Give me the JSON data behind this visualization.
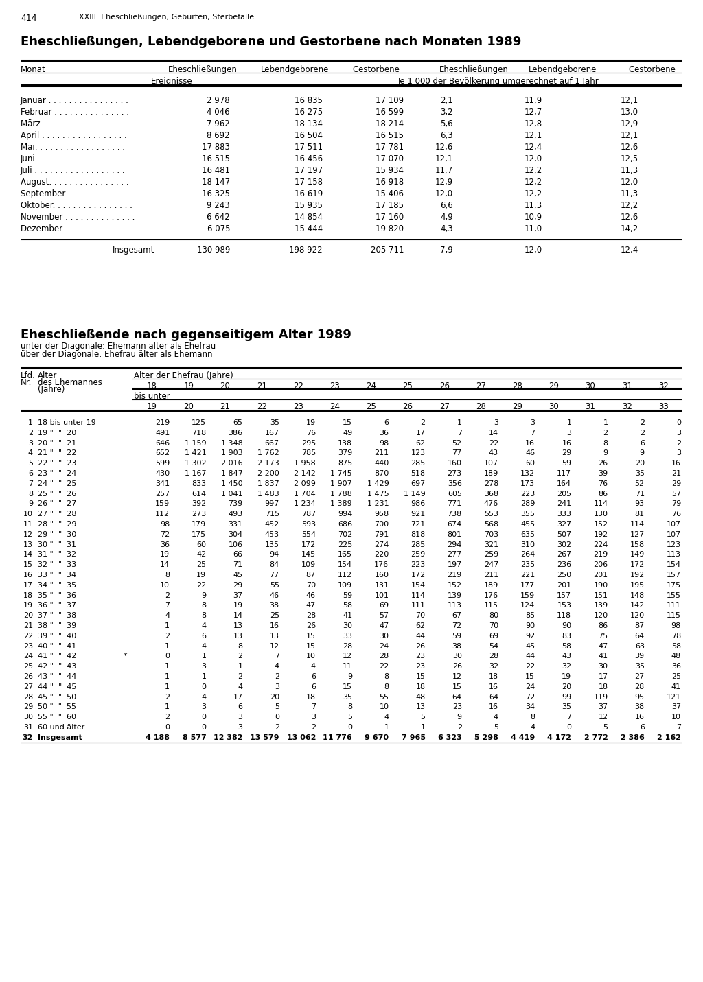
{
  "page_number": "414",
  "page_header": "XXIII. Eheschließungen, Geburten, Sterbefälle",
  "table1_title": "Eheschließungen, Lebendgeborene und Gestorbene nach Monaten 1989",
  "table1_sub1": "Ereignisse",
  "table1_sub2": "Je 1 000 der Bevölkerung umgerechnet auf 1 Jahr",
  "table1_rows": [
    [
      "Januar . . . . . . . . . . . . . . . .",
      "2 978",
      "16 835",
      "17 109",
      "2,1",
      "11,9",
      "12,1"
    ],
    [
      "Februar . . . . . . . . . . . . . . .",
      "4 046",
      "16 275",
      "16 599",
      "3,2",
      "12,7",
      "13,0"
    ],
    [
      "März. . . . . . . . . . . . . . . . .",
      "7 962",
      "18 134",
      "18 214",
      "5,6",
      "12,8",
      "12,9"
    ],
    [
      "April . . . . . . . . . . . . . . . . .",
      "8 692",
      "16 504",
      "16 515",
      "6,3",
      "12,1",
      "12,1"
    ],
    [
      "Mai. . . . . . . . . . . . . . . . . .",
      "17 883",
      "17 511",
      "17 781",
      "12,6",
      "12,4",
      "12,6"
    ],
    [
      "Juni. . . . . . . . . . . . . . . . . .",
      "16 515",
      "16 456",
      "17 070",
      "12,1",
      "12,0",
      "12,5"
    ],
    [
      "Juli . . . . . . . . . . . . . . . . . .",
      "16 481",
      "17 197",
      "15 934",
      "11,7",
      "12,2",
      "11,3"
    ],
    [
      "August. . . . . . . . . . . . . . . .",
      "18 147",
      "17 158",
      "16 918",
      "12,9",
      "12,2",
      "12,0"
    ],
    [
      "September . . . . . . . . . . . . .",
      "16 325",
      "16 619",
      "15 406",
      "12,0",
      "12,2",
      "11,3"
    ],
    [
      "Oktober. . . . . . . . . . . . . . . .",
      "9 243",
      "15 935",
      "17 185",
      "6,6",
      "11,3",
      "12,2"
    ],
    [
      "November . . . . . . . . . . . . . .",
      "6 642",
      "14 854",
      "17 160",
      "4,9",
      "10,9",
      "12,6"
    ],
    [
      "Dezember . . . . . . . . . . . . . .",
      "6 075",
      "15 444",
      "19 820",
      "4,3",
      "11,0",
      "14,2"
    ]
  ],
  "table1_total_label": "Insgesamt",
  "table1_total": [
    "130 989",
    "198 922",
    "205 711",
    "7,9",
    "12,0",
    "12,4"
  ],
  "table2_title": "Eheschließende nach gegenseitigem Alter 1989",
  "table2_sub1": "unter der Diagonale: Ehemann älter als Ehefrau",
  "table2_sub2": "über der Diagonale: Ehefrau älter als Ehemann",
  "table2_age_from": [
    "18",
    "19",
    "20",
    "21",
    "22",
    "23",
    "24",
    "25",
    "26",
    "27",
    "28",
    "29",
    "30",
    "31",
    "32"
  ],
  "table2_age_to": [
    "19",
    "20",
    "21",
    "22",
    "23",
    "24",
    "25",
    "26",
    "27",
    "28",
    "29",
    "30",
    "31",
    "32",
    "33"
  ],
  "table2_rows": [
    [
      "1",
      "18 bis unter 19",
      "219",
      "125",
      "65",
      "35",
      "19",
      "15",
      "6",
      "2",
      "1",
      "3",
      "3",
      "1",
      "1",
      "2",
      "0"
    ],
    [
      "2",
      "19 \"  \"  20",
      "491",
      "718",
      "386",
      "167",
      "76",
      "49",
      "36",
      "17",
      "7",
      "14",
      "7",
      "3",
      "2",
      "2",
      "3"
    ],
    [
      "3",
      "20 \"  \"  21",
      "646",
      "1 159",
      "1 348",
      "667",
      "295",
      "138",
      "98",
      "62",
      "52",
      "22",
      "16",
      "16",
      "8",
      "6",
      "2"
    ],
    [
      "4",
      "21 \"  \"  22",
      "652",
      "1 421",
      "1 903",
      "1 762",
      "785",
      "379",
      "211",
      "123",
      "77",
      "43",
      "46",
      "29",
      "9",
      "9",
      "3"
    ],
    [
      "5",
      "22 \"  \"  23",
      "599",
      "1 302",
      "2 016",
      "2 173",
      "1 958",
      "875",
      "440",
      "285",
      "160",
      "107",
      "60",
      "59",
      "26",
      "20",
      "16"
    ],
    [
      "6",
      "23 \"  \"  24",
      "430",
      "1 167",
      "1 847",
      "2 200",
      "2 142",
      "1 745",
      "870",
      "518",
      "273",
      "189",
      "132",
      "117",
      "39",
      "35",
      "21"
    ],
    [
      "7",
      "24 \"  \"  25",
      "341",
      "833",
      "1 450",
      "1 837",
      "2 099",
      "1 907",
      "1 429",
      "697",
      "356",
      "278",
      "173",
      "164",
      "76",
      "52",
      "29"
    ],
    [
      "8",
      "25 \"  \"  26",
      "257",
      "614",
      "1 041",
      "1 483",
      "1 704",
      "1 788",
      "1 475",
      "1 149",
      "605",
      "368",
      "223",
      "205",
      "86",
      "71",
      "57"
    ],
    [
      "9",
      "26 \"  \"  27",
      "159",
      "392",
      "739",
      "997",
      "1 234",
      "1 389",
      "1 231",
      "986",
      "771",
      "476",
      "289",
      "241",
      "114",
      "93",
      "79"
    ],
    [
      "10",
      "27 \"  \"  28",
      "112",
      "273",
      "493",
      "715",
      "787",
      "994",
      "958",
      "921",
      "738",
      "553",
      "355",
      "333",
      "130",
      "81",
      "76"
    ],
    [
      "11",
      "28 \"  \"  29",
      "98",
      "179",
      "331",
      "452",
      "593",
      "686",
      "700",
      "721",
      "674",
      "568",
      "455",
      "327",
      "152",
      "114",
      "107"
    ],
    [
      "12",
      "29 \"  \"  30",
      "72",
      "175",
      "304",
      "453",
      "554",
      "702",
      "791",
      "818",
      "801",
      "703",
      "635",
      "507",
      "192",
      "127",
      "107"
    ],
    [
      "13",
      "30 \"  \"  31",
      "36",
      "60",
      "106",
      "135",
      "172",
      "225",
      "274",
      "285",
      "294",
      "321",
      "310",
      "302",
      "224",
      "158",
      "123"
    ],
    [
      "14",
      "31 \"  \"  32",
      "19",
      "42",
      "66",
      "94",
      "145",
      "165",
      "220",
      "259",
      "277",
      "259",
      "264",
      "267",
      "219",
      "149",
      "113"
    ],
    [
      "15",
      "32 \"  \"  33",
      "14",
      "25",
      "71",
      "84",
      "109",
      "154",
      "176",
      "223",
      "197",
      "247",
      "235",
      "236",
      "206",
      "172",
      "154"
    ],
    [
      "16",
      "33 \"  \"  34",
      "8",
      "19",
      "45",
      "77",
      "87",
      "112",
      "160",
      "172",
      "219",
      "211",
      "221",
      "250",
      "201",
      "192",
      "157"
    ],
    [
      "17",
      "34 \"  \"  35",
      "10",
      "22",
      "29",
      "55",
      "70",
      "109",
      "131",
      "154",
      "152",
      "189",
      "177",
      "201",
      "190",
      "195",
      "175"
    ],
    [
      "18",
      "35 \"  \"  36",
      "2",
      "9",
      "37",
      "46",
      "46",
      "59",
      "101",
      "114",
      "139",
      "176",
      "159",
      "157",
      "151",
      "148",
      "155"
    ],
    [
      "19",
      "36 \"  \"  37",
      "7",
      "8",
      "19",
      "38",
      "47",
      "58",
      "69",
      "111",
      "113",
      "115",
      "124",
      "153",
      "139",
      "142",
      "111"
    ],
    [
      "20",
      "37 \"  \"  38",
      "4",
      "8",
      "14",
      "25",
      "28",
      "41",
      "57",
      "70",
      "67",
      "80",
      "85",
      "118",
      "120",
      "120",
      "115"
    ],
    [
      "21",
      "38 \"  \"  39",
      "1",
      "4",
      "13",
      "16",
      "26",
      "30",
      "47",
      "62",
      "72",
      "70",
      "90",
      "90",
      "86",
      "87",
      "98"
    ],
    [
      "22",
      "39 \"  \"  40",
      "2",
      "6",
      "13",
      "13",
      "15",
      "33",
      "30",
      "44",
      "59",
      "69",
      "92",
      "83",
      "75",
      "64",
      "78"
    ],
    [
      "23",
      "40 \"  \"  41",
      "1",
      "4",
      "8",
      "12",
      "15",
      "28",
      "24",
      "26",
      "38",
      "54",
      "45",
      "58",
      "47",
      "63",
      "58"
    ],
    [
      "24",
      "41 \"  \"  42",
      "*",
      "0",
      "1",
      "2",
      "7",
      "10",
      "12",
      "28",
      "23",
      "30",
      "28",
      "44",
      "43",
      "41",
      "39",
      "48"
    ],
    [
      "25",
      "42 \"  \"  43",
      "1",
      "3",
      "1",
      "4",
      "4",
      "11",
      "22",
      "23",
      "26",
      "32",
      "22",
      "32",
      "30",
      "35",
      "36"
    ],
    [
      "26",
      "43 \"  \"  44",
      "1",
      "1",
      "2",
      "2",
      "6",
      "9",
      "8",
      "15",
      "12",
      "18",
      "15",
      "19",
      "17",
      "27",
      "25"
    ],
    [
      "27",
      "44 \"  \"  45",
      "1",
      "0",
      "4",
      "3",
      "6",
      "15",
      "8",
      "18",
      "15",
      "16",
      "24",
      "20",
      "18",
      "28",
      "41"
    ],
    [
      "28",
      "45 \"  \"  50",
      "2",
      "4",
      "17",
      "20",
      "18",
      "35",
      "55",
      "48",
      "64",
      "64",
      "72",
      "99",
      "119",
      "95",
      "121"
    ],
    [
      "29",
      "50 \"  \"  55",
      "1",
      "3",
      "6",
      "5",
      "7",
      "8",
      "10",
      "13",
      "23",
      "16",
      "34",
      "35",
      "37",
      "38",
      "37"
    ],
    [
      "30",
      "55 \"  \"  60",
      "2",
      "0",
      "3",
      "0",
      "3",
      "5",
      "4",
      "5",
      "9",
      "4",
      "8",
      "7",
      "12",
      "16",
      "10"
    ],
    [
      "31",
      "60 und älter",
      "0",
      "0",
      "3",
      "2",
      "2",
      "0",
      "1",
      "1",
      "2",
      "5",
      "4",
      "0",
      "5",
      "6",
      "7"
    ],
    [
      "32",
      "Insgesamt",
      "4 188",
      "8 577",
      "12 382",
      "13 579",
      "13 062",
      "11 776",
      "9 670",
      "7 965",
      "6 323",
      "5 298",
      "4 419",
      "4 172",
      "2 772",
      "2 386",
      "2 162"
    ]
  ],
  "bg_color": "#ffffff"
}
